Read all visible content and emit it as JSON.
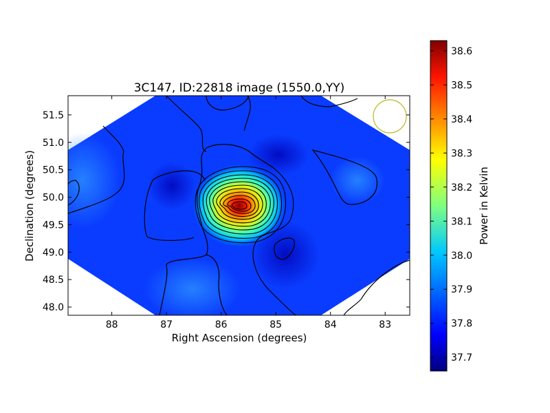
{
  "chart_data": {
    "type": "heatmap",
    "title": "3C147, ID:22818 image (1550.0,YY)",
    "xlabel": "Right Ascension (degrees)",
    "ylabel": "Declination (degrees)",
    "xlim": [
      88.8,
      82.55
    ],
    "ylim": [
      47.85,
      51.85
    ],
    "x_ticks": [
      "88",
      "87",
      "86",
      "85",
      "84",
      "83"
    ],
    "y_ticks": [
      "48.0",
      "48.5",
      "49.0",
      "49.5",
      "50.0",
      "50.5",
      "51.0",
      "51.5"
    ],
    "colorbar": {
      "label": "Power in Kelvin",
      "range": [
        37.66,
        38.63
      ],
      "ticks": [
        "37.7",
        "37.8",
        "37.9",
        "38.0",
        "38.1",
        "38.2",
        "38.3",
        "38.4",
        "38.5",
        "38.6"
      ],
      "colormap": "jet"
    },
    "peak": {
      "ra": 85.62,
      "dec": 49.85,
      "value": 38.6
    },
    "background_level": 37.8,
    "contour_levels": 12,
    "beam_marker": {
      "ra": 82.93,
      "dec": 51.47,
      "color": "#b8b820"
    },
    "grid": false
  }
}
